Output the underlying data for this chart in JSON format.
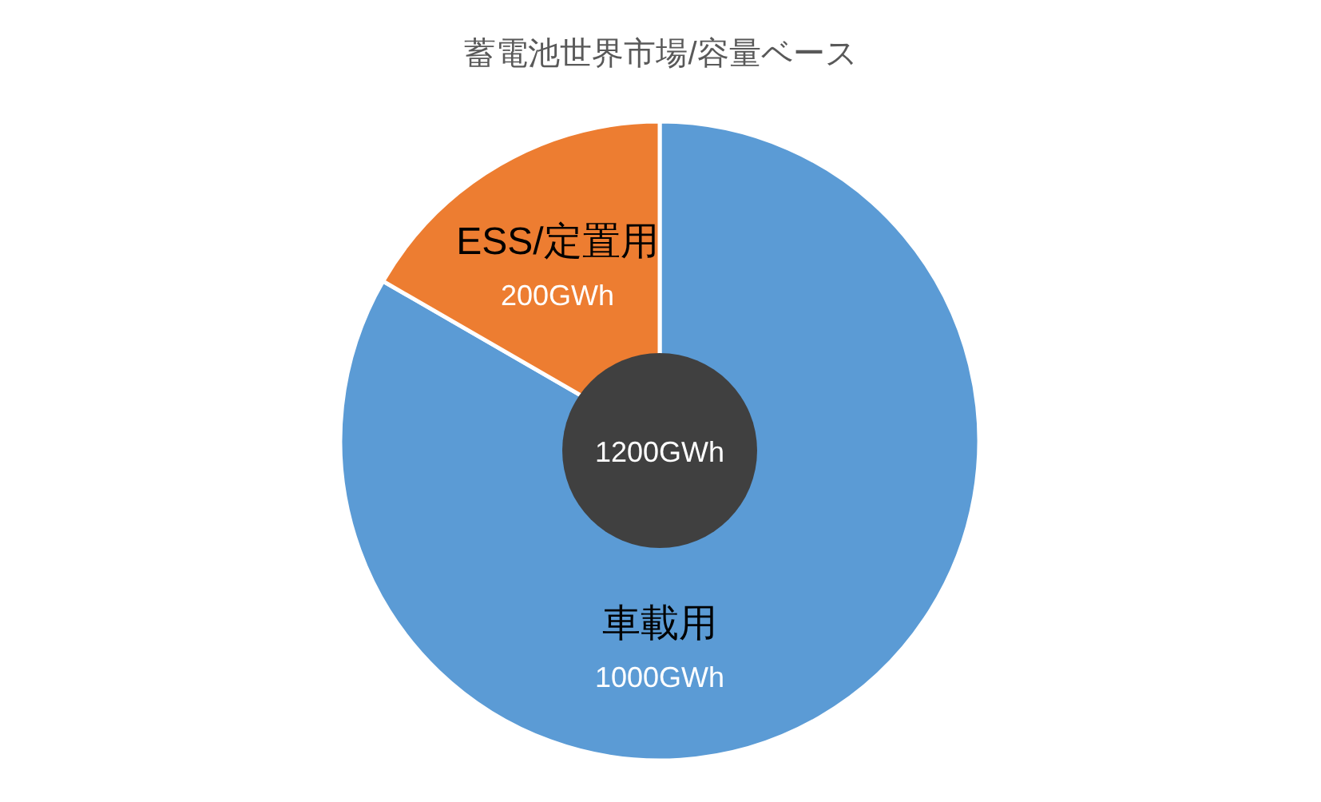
{
  "chart_data": {
    "type": "pie",
    "title": "蓄電池世界市場/容量ベース",
    "categories": [
      "車載用",
      "ESS/定置用"
    ],
    "values": [
      1000,
      200
    ],
    "colors": [
      "#5b9bd5",
      "#ed7d31"
    ],
    "value_labels": [
      "1000GWh",
      "200GWh"
    ],
    "annotations": [
      "1200GWh"
    ]
  }
}
